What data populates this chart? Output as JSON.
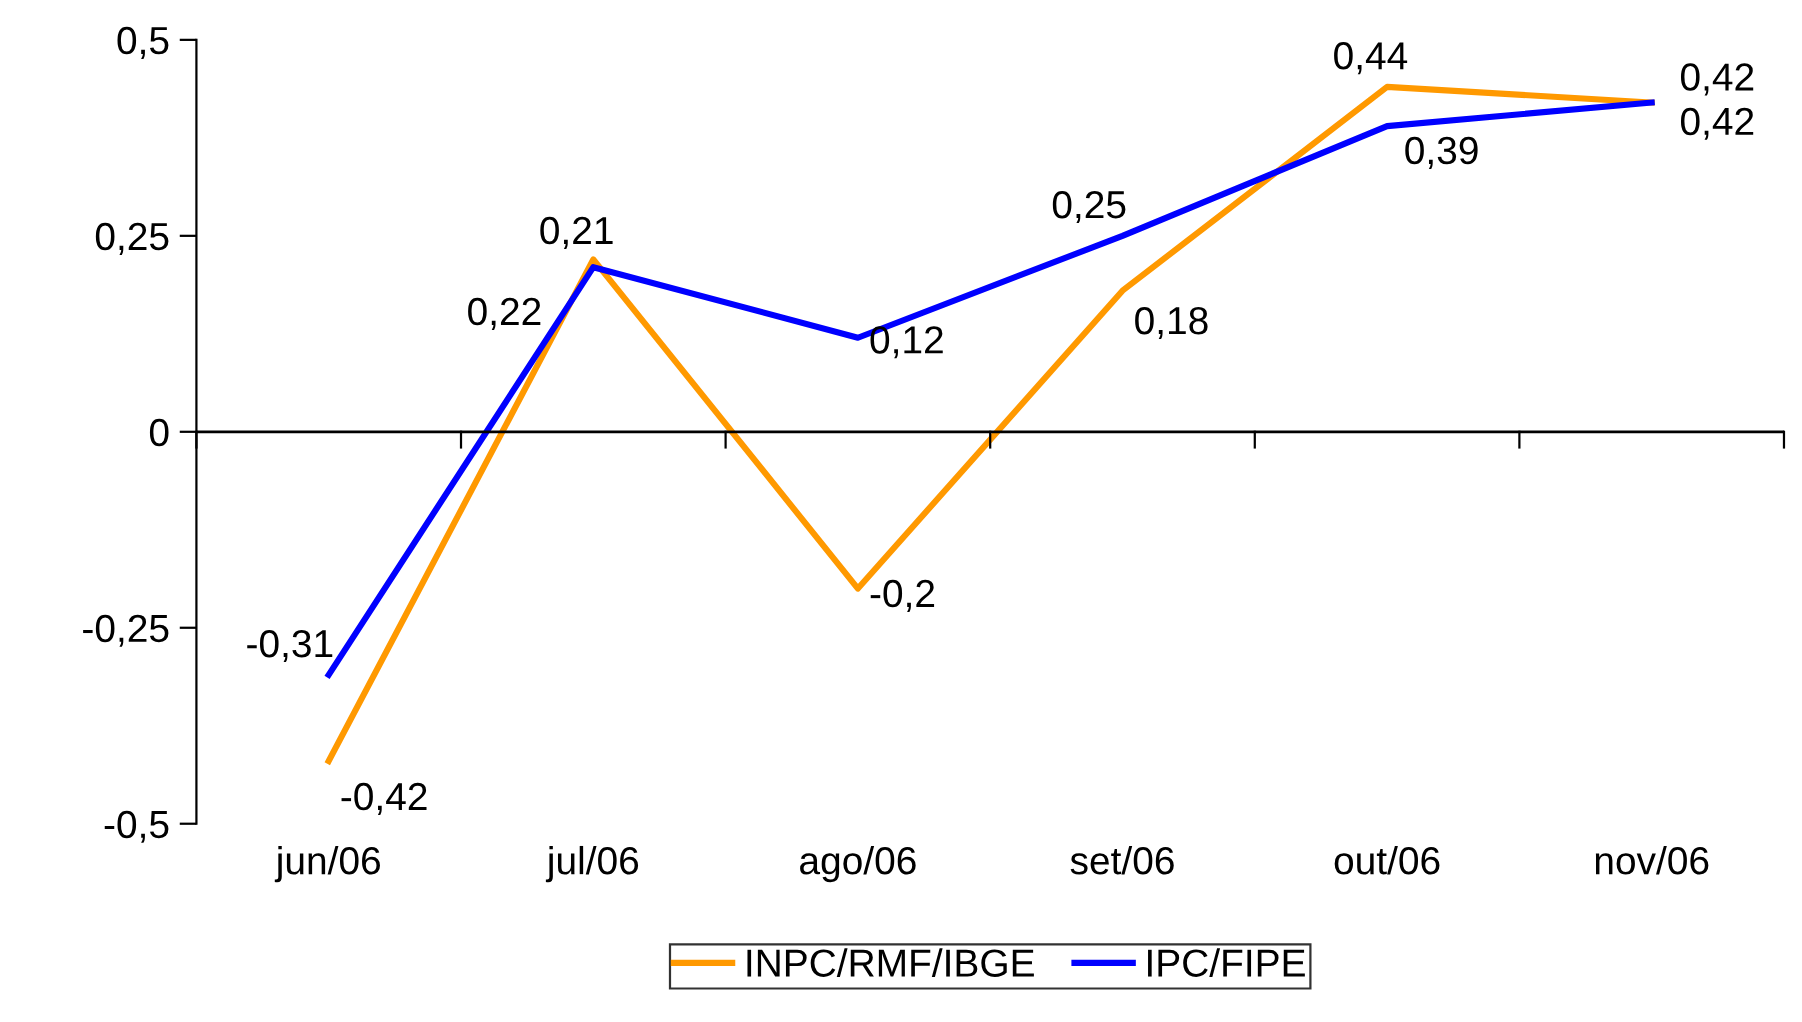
{
  "chart_data": {
    "type": "line",
    "categories": [
      "jun/06",
      "jul/06",
      "ago/06",
      "set/06",
      "out/06",
      "nov/06"
    ],
    "series": [
      {
        "name": "INPC/RMF/IBGE",
        "color": "#ff9900",
        "values": [
          -0.42,
          0.22,
          -0.2,
          0.18,
          0.44,
          0.42
        ],
        "value_labels": [
          "-0,42",
          "0,22",
          "-0,2",
          "0,18",
          "0,44",
          "0,42"
        ]
      },
      {
        "name": "IPC/FIPE",
        "color": "#0000ff",
        "values": [
          -0.31,
          0.21,
          0.12,
          0.25,
          0.39,
          0.42
        ],
        "value_labels": [
          "-0,31",
          "0,21",
          "0,12",
          "0,25",
          "0,39",
          "0,42"
        ]
      }
    ],
    "ylim": [
      -0.5,
      0.5
    ],
    "yticks": [
      {
        "value": -0.5,
        "label": "-0,5"
      },
      {
        "value": -0.25,
        "label": "-0,25"
      },
      {
        "value": 0,
        "label": "0"
      },
      {
        "value": 0.25,
        "label": "0,25"
      },
      {
        "value": 0.5,
        "label": "0,5"
      }
    ],
    "ref_lines": [
      {
        "axis": "y",
        "value": 0,
        "color": "#000000",
        "line_style": "solid"
      }
    ],
    "grid": false,
    "legend": "bottom",
    "marker": "none",
    "line_style": "solid"
  }
}
